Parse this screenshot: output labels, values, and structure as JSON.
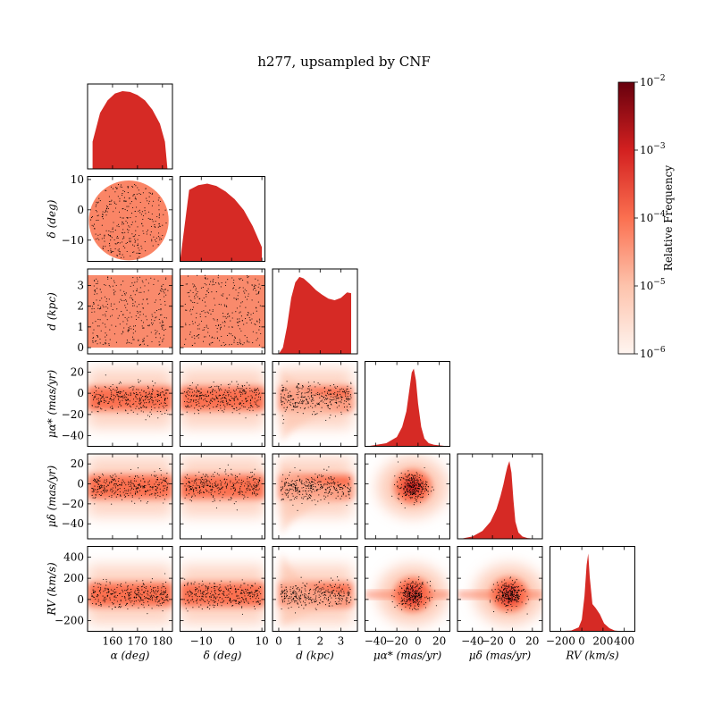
{
  "chart_data": {
    "type": "heatmap",
    "subtype": "corner-plot",
    "title": "h277, upsampled by CNF",
    "variables": [
      {
        "key": "alpha",
        "axis_label": "α (deg)",
        "range": [
          150,
          184
        ],
        "ticks": [
          160,
          170,
          180
        ],
        "tick_labels": [
          "160",
          "170",
          "180"
        ]
      },
      {
        "key": "delta",
        "axis_label": "δ (deg)",
        "range": [
          -17,
          11
        ],
        "ticks": [
          -10,
          0,
          10
        ],
        "tick_labels": [
          "−10",
          "0",
          "10"
        ]
      },
      {
        "key": "d",
        "axis_label": "d (kpc)",
        "range": [
          -0.3,
          3.8
        ],
        "ticks": [
          0,
          1,
          2,
          3
        ],
        "tick_labels": [
          "0",
          "1",
          "2",
          "3"
        ]
      },
      {
        "key": "mu_alpha",
        "axis_label": "μα* (mas/yr)",
        "range": [
          -50,
          30
        ],
        "ticks": [
          -40,
          -20,
          0,
          20
        ],
        "tick_labels": [
          "−40",
          "−20",
          "0",
          "20"
        ]
      },
      {
        "key": "mu_delta",
        "axis_label": "μδ (mas/yr)",
        "range": [
          -55,
          30
        ],
        "ticks": [
          -40,
          -20,
          0,
          20
        ],
        "tick_labels": [
          "−40",
          "−20",
          "0",
          "20"
        ]
      },
      {
        "key": "rv",
        "axis_label": "RV (km/s)",
        "range": [
          -300,
          500
        ],
        "ticks": [
          -200,
          0,
          200,
          400
        ],
        "tick_labels": [
          "−200",
          "0",
          "200",
          "400"
        ]
      }
    ],
    "row_ticks": {
      "delta": {
        "ticks": [
          -10,
          0,
          10
        ],
        "tick_labels": [
          "−10",
          "0",
          "10"
        ]
      },
      "d": {
        "ticks": [
          0,
          1,
          2,
          3
        ],
        "tick_labels": [
          "0",
          "1",
          "2",
          "3"
        ]
      },
      "mu_alpha": {
        "ticks": [
          -40,
          -20,
          0,
          20
        ],
        "tick_labels": [
          "−40",
          "−20",
          "0",
          "20"
        ]
      },
      "mu_delta": {
        "ticks": [
          -40,
          -20,
          0,
          20
        ],
        "tick_labels": [
          "−40",
          "−20",
          "0",
          "20"
        ]
      },
      "rv": {
        "ticks": [
          -200,
          0,
          200,
          400
        ],
        "tick_labels": [
          "−200",
          "0",
          "200",
          "400"
        ]
      }
    },
    "marginal_histograms": [
      {
        "var": "alpha",
        "x": [
          152,
          155,
          158,
          161,
          164,
          167,
          170,
          173,
          176,
          179,
          181,
          182
        ],
        "y": [
          0.35,
          0.72,
          0.88,
          0.97,
          1.0,
          0.99,
          0.95,
          0.88,
          0.76,
          0.58,
          0.35,
          0.0
        ]
      },
      {
        "var": "delta",
        "x": [
          -17,
          -14,
          -11,
          -8,
          -5,
          -2,
          1,
          4,
          7,
          10
        ],
        "y": [
          0.0,
          0.92,
          0.98,
          1.0,
          0.97,
          0.9,
          0.8,
          0.66,
          0.45,
          0.18
        ]
      },
      {
        "var": "d",
        "x": [
          0.0,
          0.2,
          0.4,
          0.6,
          0.8,
          1.0,
          1.2,
          1.5,
          1.8,
          2.1,
          2.4,
          2.7,
          3.0,
          3.3,
          3.5
        ],
        "y": [
          0.0,
          0.08,
          0.35,
          0.72,
          0.92,
          0.99,
          0.97,
          0.9,
          0.82,
          0.76,
          0.71,
          0.69,
          0.72,
          0.79,
          0.78
        ]
      },
      {
        "var": "mu_alpha",
        "x": [
          -48,
          -30,
          -20,
          -15,
          -11,
          -8,
          -6,
          -4,
          -2,
          0,
          3,
          6,
          10,
          15,
          22,
          28
        ],
        "y": [
          0.0,
          0.04,
          0.12,
          0.25,
          0.45,
          0.75,
          0.95,
          1.0,
          0.85,
          0.55,
          0.25,
          0.1,
          0.04,
          0.02,
          0.01,
          0.0
        ]
      },
      {
        "var": "mu_delta",
        "x": [
          -52,
          -40,
          -30,
          -22,
          -16,
          -12,
          -9,
          -7,
          -5,
          -3,
          -1,
          1,
          3,
          6,
          10,
          15,
          25
        ],
        "y": [
          0.0,
          0.03,
          0.1,
          0.22,
          0.38,
          0.55,
          0.7,
          0.82,
          0.93,
          1.0,
          0.85,
          0.5,
          0.22,
          0.08,
          0.03,
          0.01,
          0.0
        ]
      },
      {
        "var": "rv",
        "x": [
          -250,
          -100,
          -30,
          0,
          25,
          45,
          60,
          75,
          100,
          130,
          170,
          210,
          260,
          310,
          380
        ],
        "y": [
          0.0,
          0.01,
          0.05,
          0.15,
          0.45,
          0.85,
          1.0,
          0.7,
          0.35,
          0.3,
          0.22,
          0.1,
          0.04,
          0.01,
          0.0
        ]
      }
    ],
    "colorbar": {
      "label": "Relative Frequency",
      "scale": "log",
      "range": [
        1e-06,
        0.01
      ],
      "tick_labels": [
        "10−6",
        "10−5",
        "10−4",
        "10−3",
        "10−2"
      ],
      "colors": [
        "#fff5f0",
        "#fdc3ac",
        "#fb7050",
        "#d32020",
        "#67000d"
      ]
    },
    "hist_color": "#d62a25",
    "scatter_color": "#000000",
    "grid": false,
    "legend": "none"
  }
}
